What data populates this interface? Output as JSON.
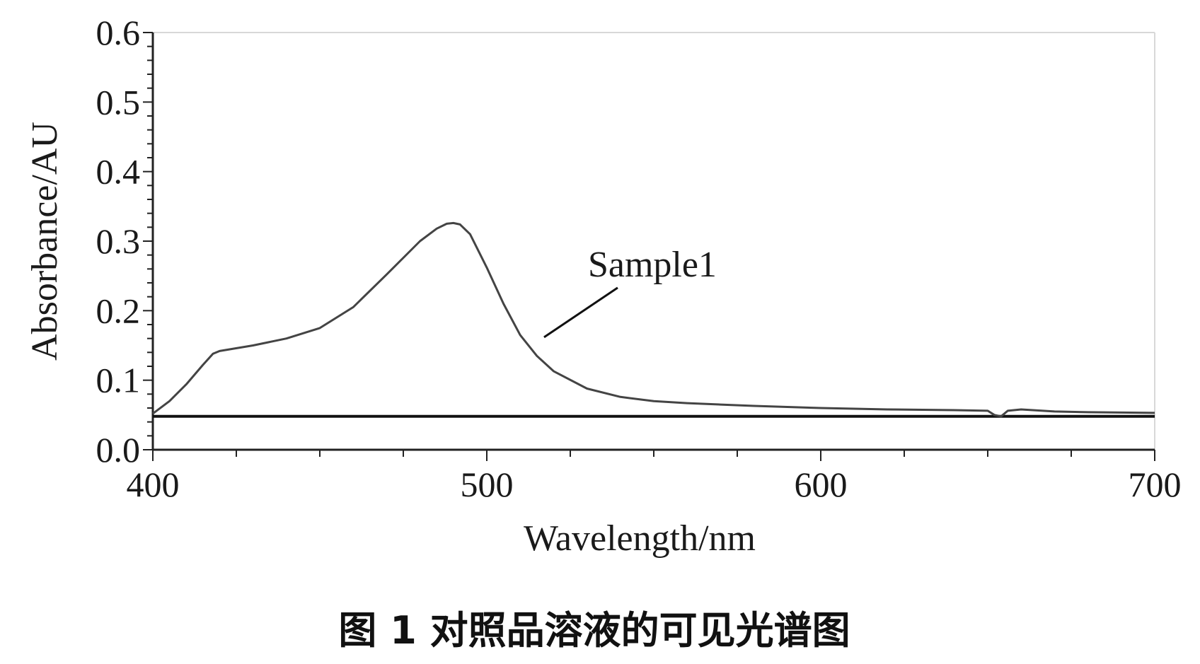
{
  "chart_data": {
    "type": "line",
    "caption": "图 1 对照品溶液的可见光谱图",
    "xlabel": "Wavelength/nm",
    "ylabel": "Absorbance/AU",
    "xlim": [
      400,
      700
    ],
    "ylim": [
      0.0,
      0.6
    ],
    "x_ticks": [
      400,
      500,
      600,
      700
    ],
    "x_tick_labels": [
      "400",
      "500",
      "600",
      "700"
    ],
    "y_ticks": [
      0.0,
      0.1,
      0.2,
      0.3,
      0.4,
      0.5,
      0.6
    ],
    "y_tick_labels": [
      "0.0",
      "0.1",
      "0.2",
      "0.3",
      "0.4",
      "0.5",
      "0.6"
    ],
    "grid": false,
    "baseline": 0.048,
    "annotation": {
      "text": "Sample1",
      "x": 518,
      "y": 0.17
    },
    "series": [
      {
        "name": "Sample1",
        "color": "#444444",
        "x": [
          400,
          405,
          410,
          415,
          418,
          420,
          430,
          440,
          450,
          460,
          470,
          480,
          485,
          488,
          490,
          492,
          495,
          500,
          505,
          510,
          515,
          520,
          530,
          540,
          550,
          560,
          570,
          580,
          600,
          620,
          640,
          650,
          652,
          654,
          656,
          660,
          670,
          680,
          700
        ],
        "y": [
          0.052,
          0.07,
          0.094,
          0.122,
          0.138,
          0.142,
          0.15,
          0.16,
          0.175,
          0.205,
          0.252,
          0.3,
          0.318,
          0.325,
          0.326,
          0.324,
          0.31,
          0.262,
          0.21,
          0.165,
          0.135,
          0.113,
          0.088,
          0.076,
          0.07,
          0.067,
          0.065,
          0.063,
          0.06,
          0.058,
          0.057,
          0.056,
          0.05,
          0.048,
          0.056,
          0.058,
          0.055,
          0.054,
          0.053
        ]
      }
    ]
  }
}
